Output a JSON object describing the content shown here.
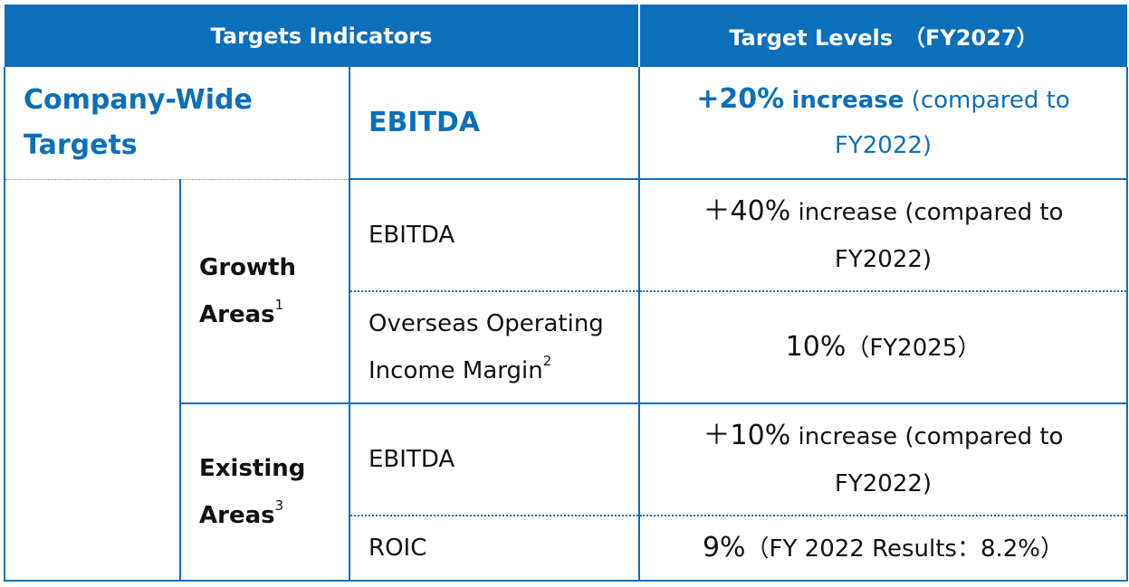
{
  "header": {
    "indicators_label": "Targets Indicators",
    "levels_label": "Target Levels　（FY2027）"
  },
  "company_wide": {
    "label_line1": "Company-Wide",
    "label_line2": "Targets",
    "indicator": "EBITDA",
    "value_number": "+20%",
    "value_increase": "increase",
    "value_compared_a": "(compared to",
    "value_compared_b": "FY2022)"
  },
  "growth_areas": {
    "label_line1": "Growth",
    "label_line2": "Areas",
    "footnote": "1",
    "rows": [
      {
        "indicator": "EBITDA",
        "value_number": "＋40%",
        "value_rest_a": "increase (compared to",
        "value_rest_b": "FY2022)"
      },
      {
        "indicator_line1": "Overseas Operating",
        "indicator_line2": "Income Margin",
        "indicator_footnote": "2",
        "value_number": "10%",
        "value_rest": "（FY2025）"
      }
    ]
  },
  "existing_areas": {
    "label_line1": "Existing",
    "label_line2": "Areas",
    "footnote": "3",
    "rows": [
      {
        "indicator": "EBITDA",
        "value_number": "＋10%",
        "value_rest_a": "increase (compared to",
        "value_rest_b": "FY2022)"
      },
      {
        "indicator": "ROIC",
        "value_number": "9%",
        "value_rest": "（FY 2022 Results：8.2%）"
      }
    ]
  },
  "colors": {
    "accent": "#0b6fba",
    "header_text": "#ffffff"
  }
}
